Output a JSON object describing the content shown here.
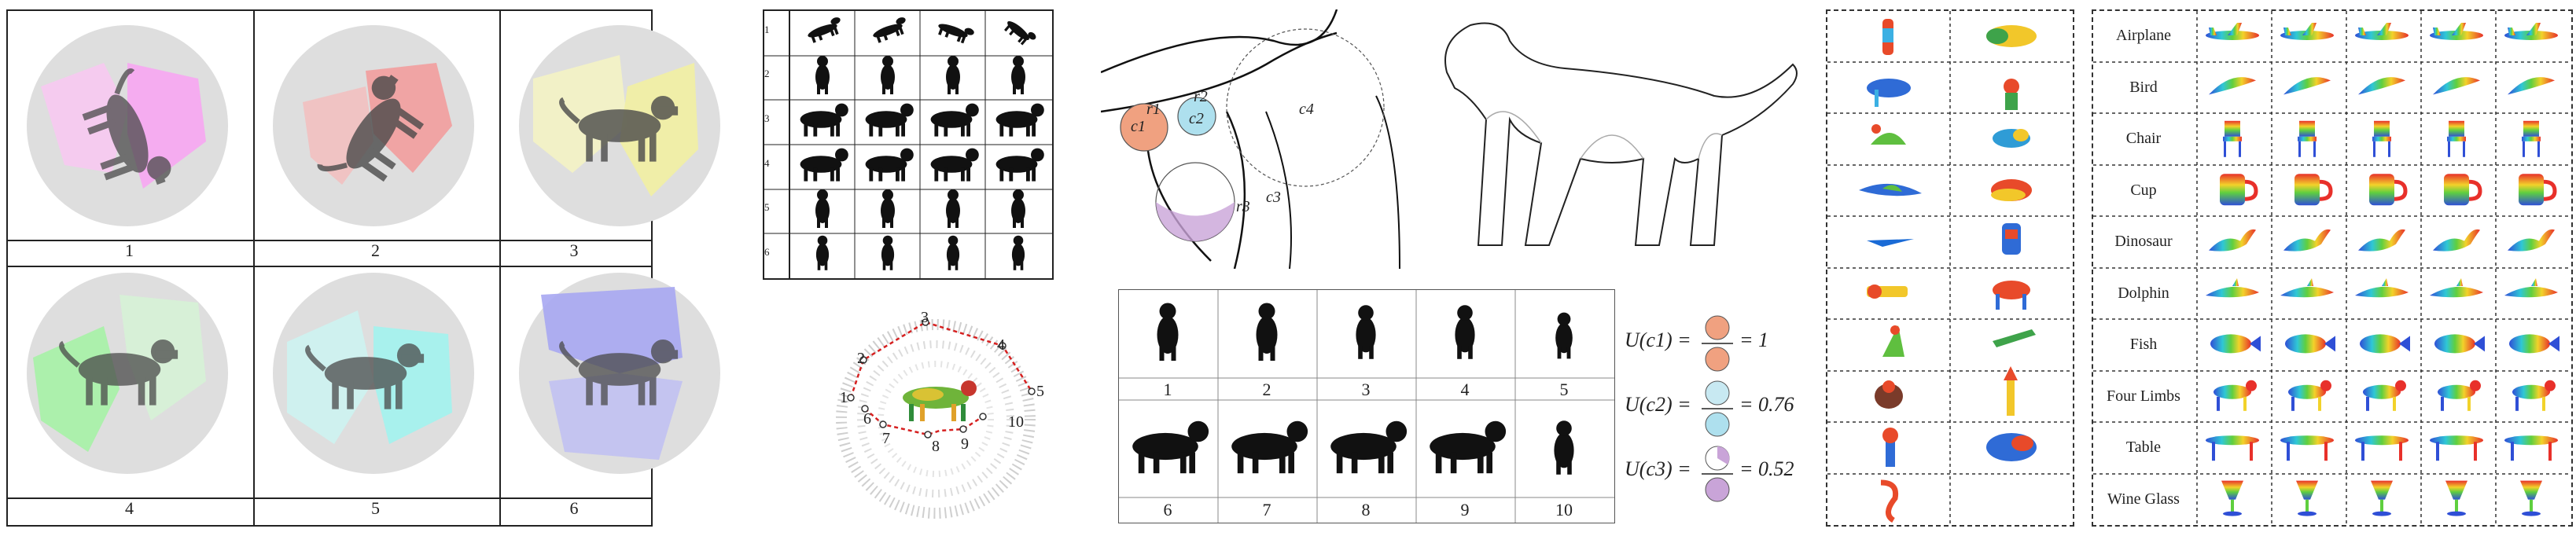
{
  "panel_a": {
    "captions": [
      "1",
      "2",
      "3",
      "4",
      "5",
      "6"
    ],
    "region_colors": [
      "#f7b6f0",
      "#f2a4a4",
      "#f4f2a8",
      "#a9f2a9",
      "#a8f4f0",
      "#a6a6f2"
    ]
  },
  "panel_b": {
    "row_numbers": [
      "1",
      "2",
      "3",
      "4",
      "5",
      "6"
    ]
  },
  "panel_c": {
    "path_labels": [
      "1",
      "2",
      "3",
      "4",
      "5",
      "6",
      "7",
      "8",
      "9",
      "10"
    ]
  },
  "panel_d": {
    "circle_labels": [
      "r1",
      "c1",
      "r2",
      "c2",
      "c4",
      "r3",
      "c3"
    ]
  },
  "panel_f": {
    "captions": [
      "1",
      "2",
      "3",
      "4",
      "5",
      "6",
      "7",
      "8",
      "9",
      "10"
    ]
  },
  "panel_g": {
    "terms": [
      {
        "label": "U(c1) =",
        "value": "= 1"
      },
      {
        "label": "U(c2) =",
        "value": "= 0.76"
      },
      {
        "label": "U(c3) =",
        "value": "= 0.52"
      }
    ]
  },
  "panel_i": {
    "categories": [
      "Airplane",
      "Bird",
      "Chair",
      "Cup",
      "Dinosaur",
      "Dolphin",
      "Fish",
      "Four Limbs",
      "Table",
      "Wine Glass"
    ]
  }
}
